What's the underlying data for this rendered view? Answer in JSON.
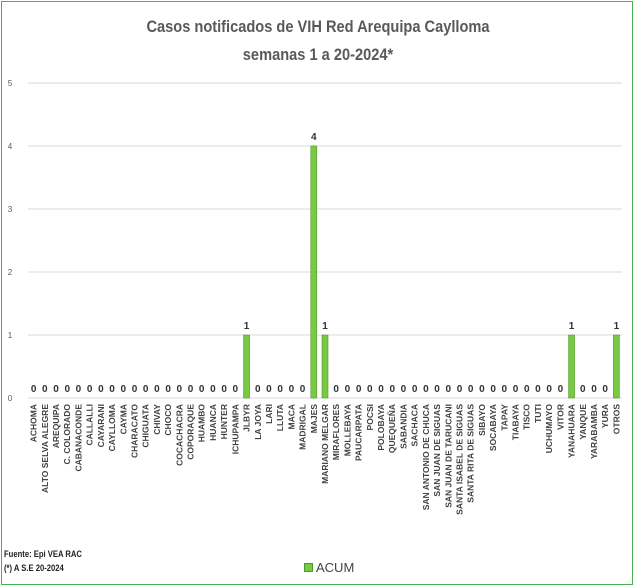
{
  "chart_data": {
    "type": "bar",
    "title": "Casos notificados de VIH Red Arequipa Caylloma",
    "subtitle": "semanas 1 a 20-2024*",
    "ylim": [
      0,
      5
    ],
    "yticks": [
      "0",
      "1",
      "2",
      "3",
      "4",
      "5"
    ],
    "grid": true,
    "legend_position": "bottom",
    "bar_color": "#7ac943",
    "categories": [
      "ACHOMA",
      "ALTO SELVA ALEGRE",
      "AREQUIPA",
      "C. COLORADO",
      "CABANACONDE",
      "CALLALLI",
      "CAYARANI",
      "CAYLLOMA",
      "CAYMA",
      "CHARACATO",
      "CHIGUATA",
      "CHIVAY",
      "CHOCO",
      "COCACHACRA",
      "COPORAQUE",
      "HUAMBO",
      "HUANCA",
      "HUNTER",
      "ICHUPAMPA",
      "JLBYR",
      "LA JOYA",
      "LARI",
      "LLUTA",
      "MACA",
      "MADRIGAL",
      "MAJES",
      "MARIANO MELGAR",
      "MIRAFLORES",
      "MOLLEBAYA",
      "PAUCARPATA",
      "POCSI",
      "POLOBAYA",
      "QUEQUEÑA",
      "SABANDIA",
      "SACHACA",
      "SAN ANTONIO DE CHUCA",
      "SAN JUAN DE SIGUAS",
      "SAN JUAN DE TARUCANI",
      "SANTA ISABEL DE SIGUAS",
      "SANTA RITA DE SIGUAS",
      "SIBAYO",
      "SOCABAYA",
      "TAPAY",
      "TIABAYA",
      "TISCO",
      "TUTI",
      "UCHUMAYO",
      "VITOR",
      "YANAHUARA",
      "YANQUE",
      "YARABAMBA",
      "YURA",
      "OTROS"
    ],
    "series": [
      {
        "name": "ACUM",
        "values": [
          0,
          0,
          0,
          0,
          0,
          0,
          0,
          0,
          0,
          0,
          0,
          0,
          0,
          0,
          0,
          0,
          0,
          0,
          0,
          1,
          0,
          0,
          0,
          0,
          0,
          4,
          1,
          0,
          0,
          0,
          0,
          0,
          0,
          0,
          0,
          0,
          0,
          0,
          0,
          0,
          0,
          0,
          0,
          0,
          0,
          0,
          0,
          0,
          1,
          0,
          0,
          0,
          1
        ]
      }
    ]
  },
  "source": {
    "line1": "Fuente: Epi VEA RAC",
    "line2": "(*) A S.E 20-2024"
  }
}
